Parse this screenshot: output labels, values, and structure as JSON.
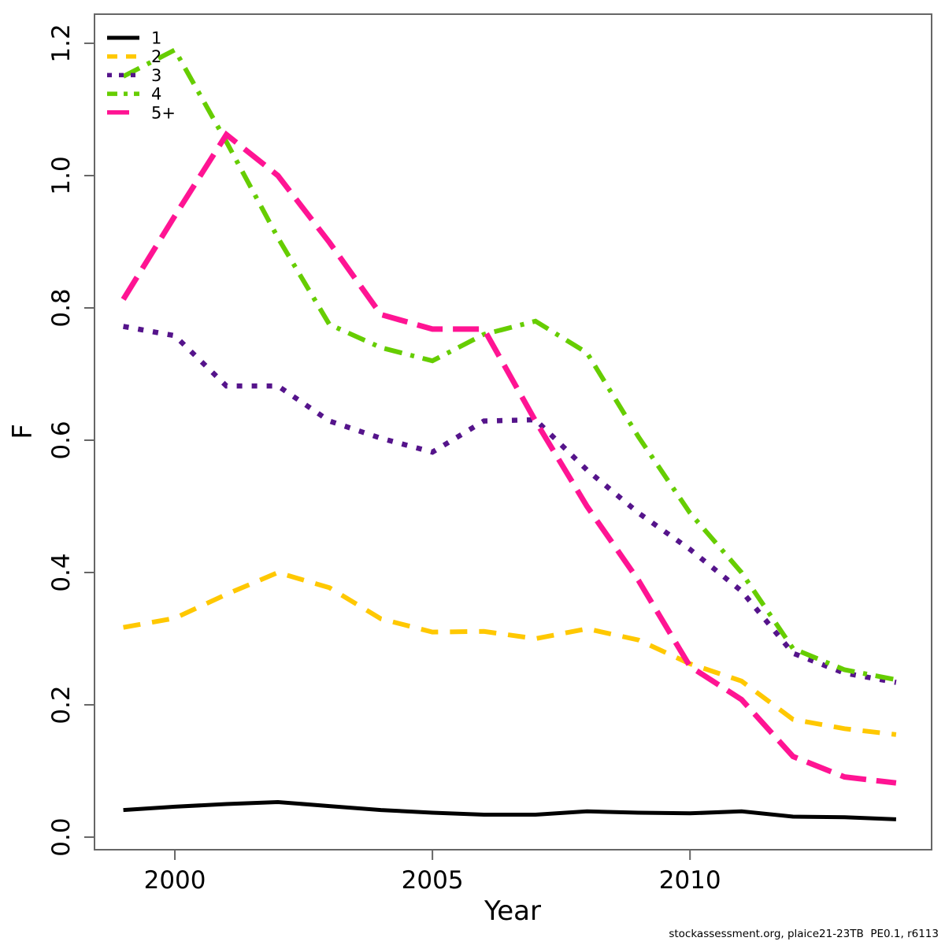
{
  "figure": {
    "footer_citation": "stockassessment.org, plaice21-23TB  PE0.1, r6113"
  },
  "chart_data": {
    "type": "line",
    "title": "",
    "xlabel": "Year",
    "ylabel": "F",
    "grid": false,
    "legend_position": "top-left",
    "xlim": [
      1998.44,
      2014.69
    ],
    "ylim": [
      -0.019,
      1.244
    ],
    "x_ticks": [
      2000,
      2005,
      2010
    ],
    "x_tick_labels": [
      "2000",
      "2005",
      "2010"
    ],
    "y_ticks": [
      0.0,
      0.2,
      0.4,
      0.6,
      0.8,
      1.0,
      1.2
    ],
    "y_tick_labels": [
      "0.0",
      "0.2",
      "0.4",
      "0.6",
      "0.8",
      "1.0",
      "1.2"
    ],
    "x": [
      1999,
      2000,
      2001,
      2002,
      2003,
      2004,
      2005,
      2006,
      2007,
      2008,
      2009,
      2010,
      2011,
      2012,
      2013,
      2014
    ],
    "series": [
      {
        "name": "1",
        "color": "#000000",
        "linestyle": "solid",
        "dasharray": "",
        "legend_dasharray": "",
        "width": 5,
        "values": [
          0.041,
          0.046,
          0.05,
          0.053,
          0.047,
          0.041,
          0.037,
          0.034,
          0.034,
          0.039,
          0.037,
          0.036,
          0.039,
          0.031,
          0.03,
          0.027
        ]
      },
      {
        "name": "2",
        "color": "#FFC800",
        "linestyle": "dashed",
        "dasharray": "22,15",
        "legend_dasharray": "13,11",
        "width": 6,
        "values": [
          0.317,
          0.331,
          0.367,
          0.4,
          0.377,
          0.33,
          0.31,
          0.311,
          0.3,
          0.315,
          0.298,
          0.262,
          0.236,
          0.178,
          0.164,
          0.155
        ]
      },
      {
        "name": "3",
        "color": "#55148B",
        "linestyle": "dotted",
        "dasharray": "7,12",
        "legend_dasharray": "6,9",
        "width": 6.5,
        "values": [
          0.772,
          0.758,
          0.682,
          0.682,
          0.629,
          0.603,
          0.582,
          0.629,
          0.631,
          0.555,
          0.49,
          0.435,
          0.372,
          0.278,
          0.248,
          0.234
        ]
      },
      {
        "name": "4",
        "color": "#66CD00",
        "linestyle": "dotdash",
        "dasharray": "23,11,5,11",
        "legend_dasharray": "13,8,5,8",
        "width": 6,
        "values": [
          1.15,
          1.19,
          1.051,
          0.906,
          0.775,
          0.74,
          0.72,
          0.76,
          0.78,
          0.732,
          0.605,
          0.49,
          0.4,
          0.285,
          0.253,
          0.238
        ]
      },
      {
        "name": "5+",
        "color": "#FF1493",
        "linestyle": "longdash",
        "dasharray": "33,13",
        "legend_dasharray": "28,14",
        "width": 7,
        "values": [
          0.813,
          0.939,
          1.062,
          1.0,
          0.899,
          0.79,
          0.768,
          0.768,
          0.629,
          0.5,
          0.388,
          0.258,
          0.208,
          0.122,
          0.091,
          0.082
        ]
      }
    ]
  }
}
